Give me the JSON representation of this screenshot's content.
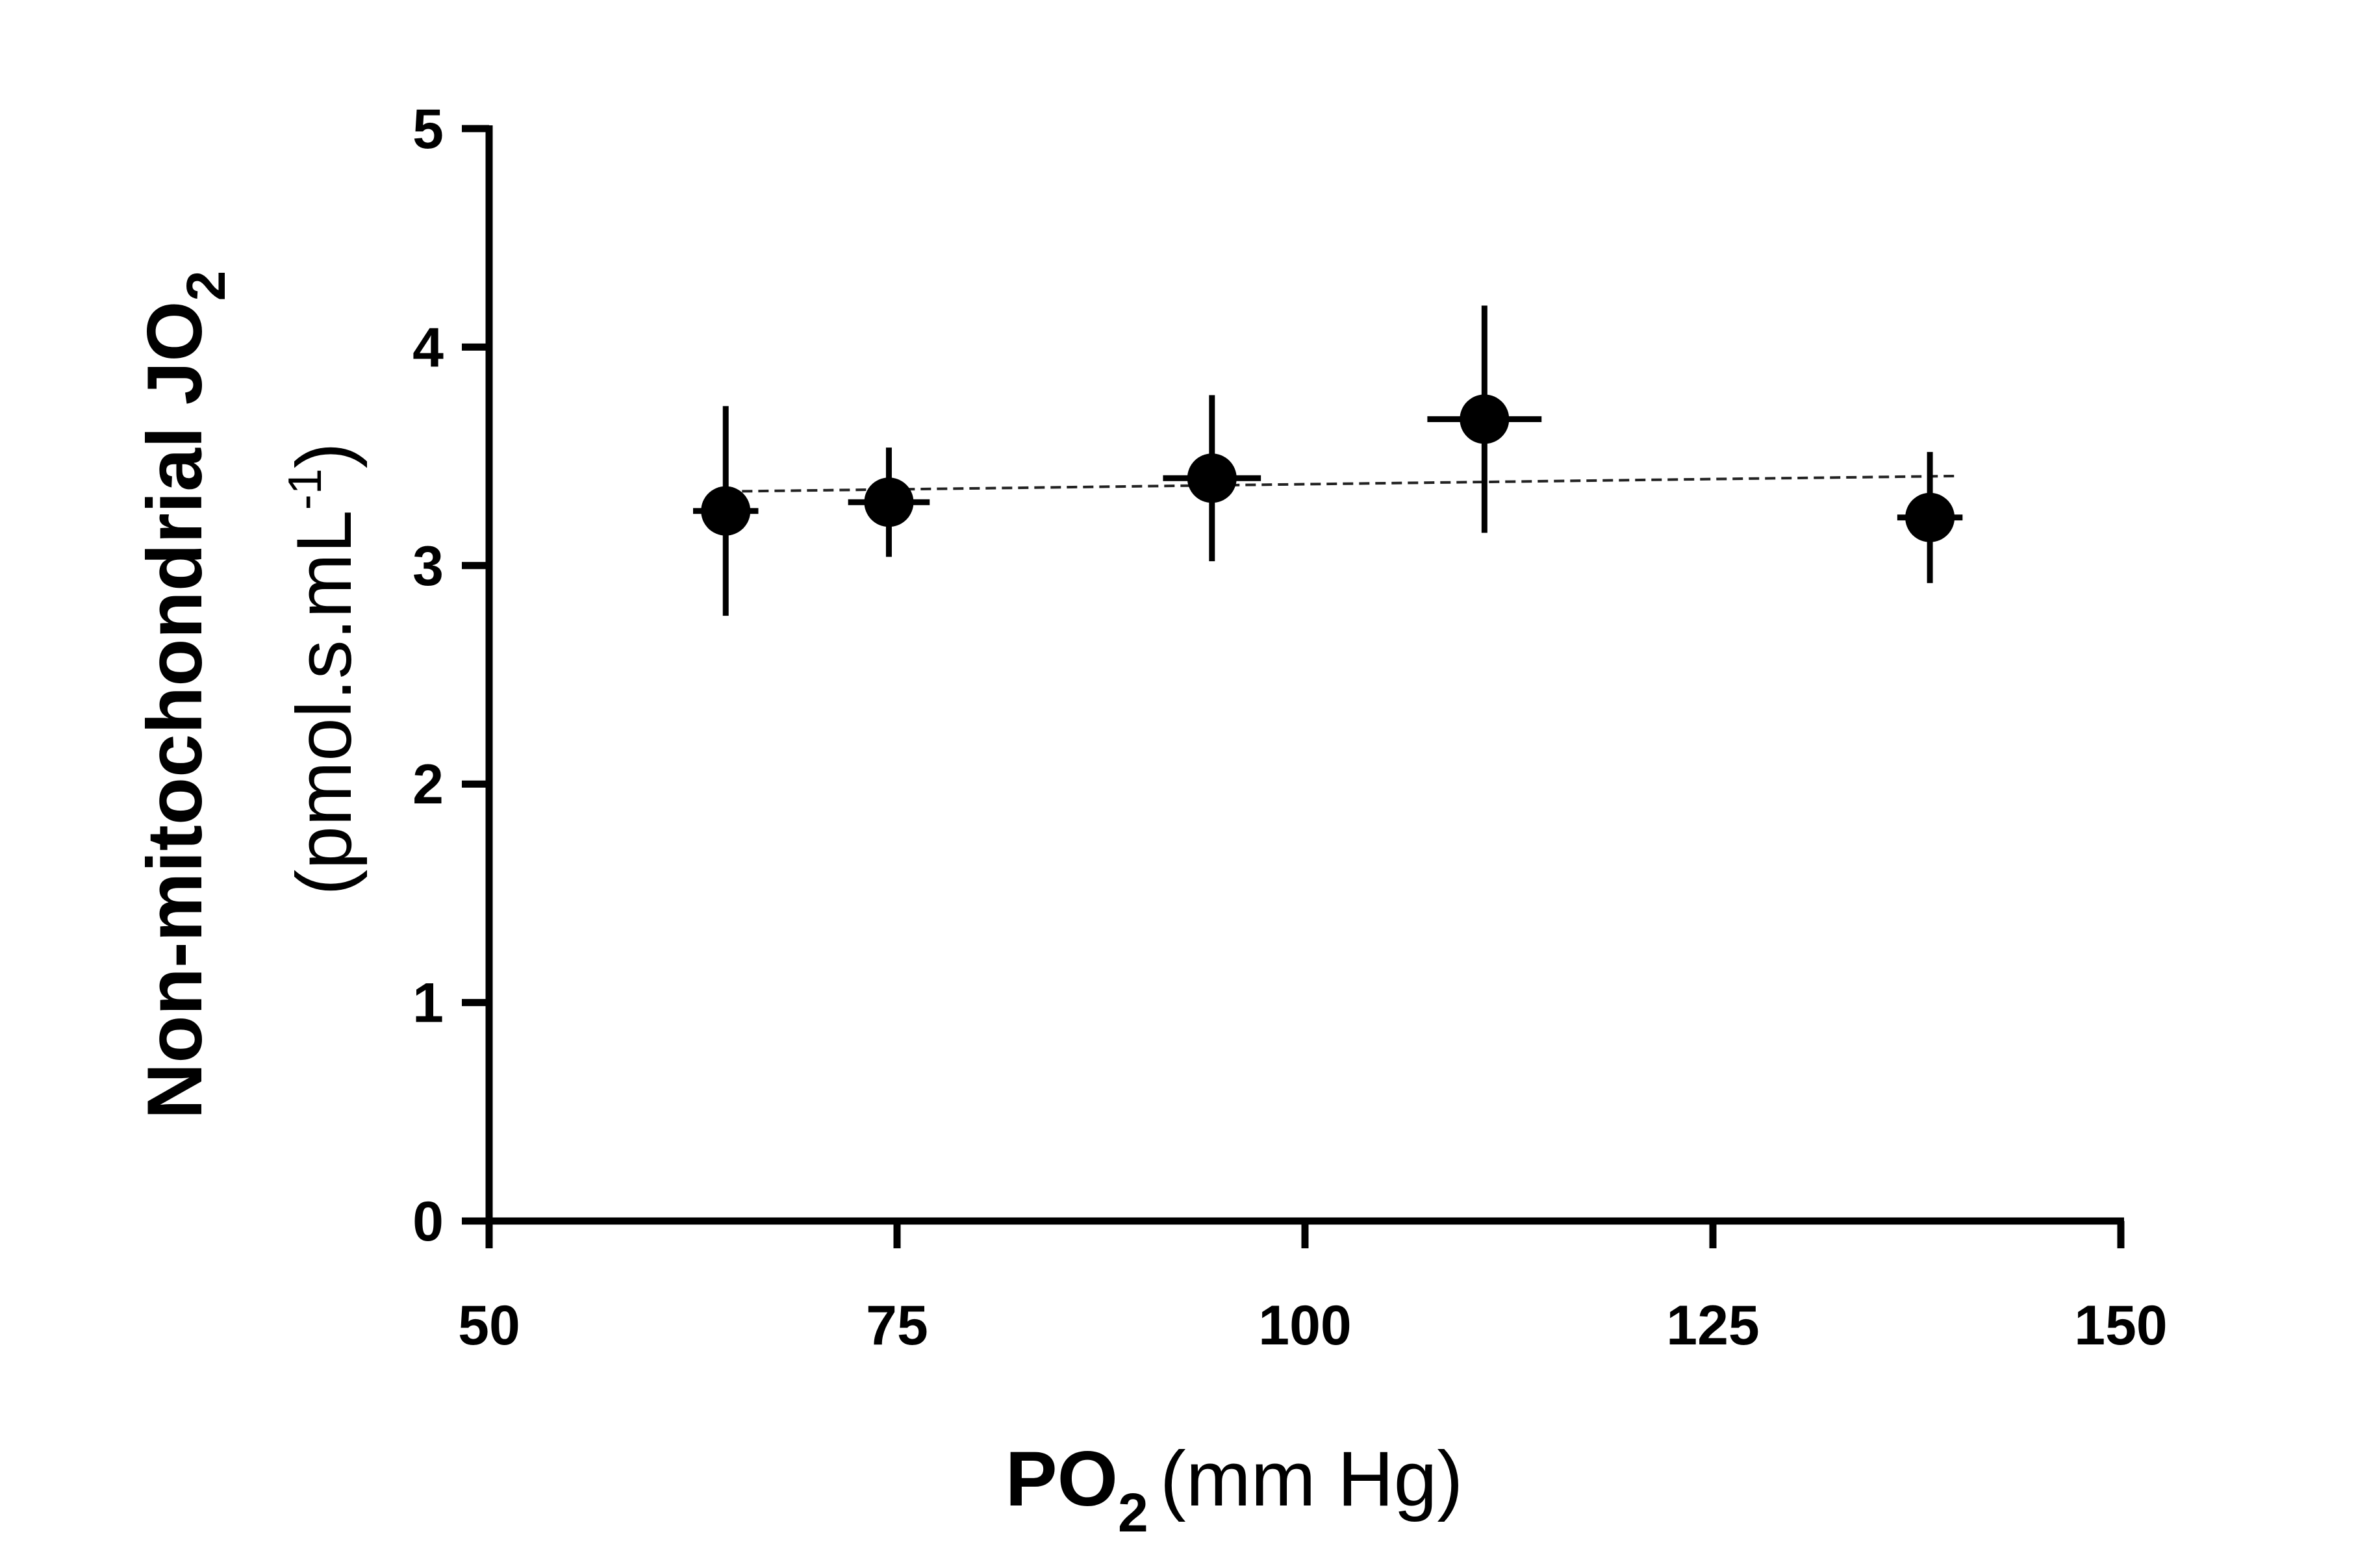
{
  "chart_data": {
    "type": "scatter",
    "title": "",
    "xlabel": {
      "main": "PO",
      "subscript": "2",
      "units": "(mm Hg)"
    },
    "ylabel": {
      "line1_main": "Non-mitochondrial JO",
      "line1_subscript": "2",
      "line2_main": "(pmol.s.mL",
      "line2_superscript": "-1",
      "line2_end": ")"
    },
    "xlim": [
      50,
      150
    ],
    "ylim": [
      0,
      5
    ],
    "x_ticks": [
      50,
      75,
      100,
      125,
      150
    ],
    "y_ticks": [
      0,
      1,
      2,
      3,
      4,
      5
    ],
    "grid": false,
    "legend": "none",
    "points": [
      {
        "x": 64.5,
        "y": 3.25,
        "x_err": 2.0,
        "y_err": 0.48
      },
      {
        "x": 74.5,
        "y": 3.29,
        "x_err": 2.5,
        "y_err": 0.25
      },
      {
        "x": 94.3,
        "y": 3.4,
        "x_err": 3.0,
        "y_err": 0.38
      },
      {
        "x": 111.0,
        "y": 3.67,
        "x_err": 3.5,
        "y_err": 0.52
      },
      {
        "x": 138.3,
        "y": 3.22,
        "x_err": 2.0,
        "y_err": 0.3
      }
    ],
    "trendline": {
      "style": "dashed",
      "x": [
        65.5,
        140
      ],
      "y": [
        3.34,
        3.41
      ]
    },
    "colors": {
      "marker": "#000000",
      "axis": "#000000"
    }
  }
}
